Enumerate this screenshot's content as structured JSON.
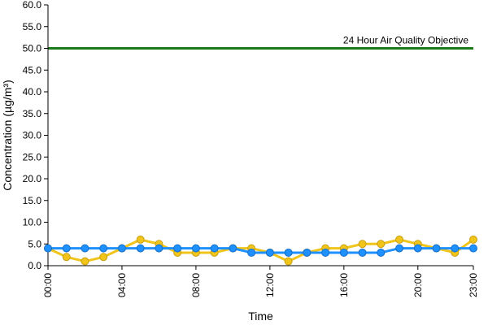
{
  "chart_data": {
    "type": "line",
    "xlabel": "Time",
    "ylabel": "Concentration (µg/m³)",
    "ylim": [
      0,
      60
    ],
    "yticks": [
      "0.0",
      "5.0",
      "10.0",
      "15.0",
      "20.0",
      "25.0",
      "30.0",
      "35.0",
      "40.0",
      "45.0",
      "50.0",
      "55.0",
      "60.0"
    ],
    "xlim": [
      0,
      23
    ],
    "xticks": [
      {
        "x": 0,
        "label": "00:00"
      },
      {
        "x": 4,
        "label": "04:00"
      },
      {
        "x": 8,
        "label": "08:00"
      },
      {
        "x": 12,
        "label": "12:00"
      },
      {
        "x": 16,
        "label": "16:00"
      },
      {
        "x": 20,
        "label": "20:00"
      },
      {
        "x": 23,
        "label": "23:00"
      }
    ],
    "grid": false,
    "x": [
      0,
      1,
      2,
      3,
      4,
      5,
      6,
      7,
      8,
      9,
      10,
      11,
      12,
      13,
      14,
      15,
      16,
      17,
      18,
      19,
      20,
      21,
      22,
      23
    ],
    "series": [
      {
        "color": "#f0c419",
        "values": [
          4,
          2,
          1,
          2,
          4,
          6,
          5,
          3,
          3,
          3,
          4,
          4,
          3,
          1,
          3,
          4,
          4,
          5,
          5,
          6,
          5,
          4,
          3,
          6
        ]
      },
      {
        "color": "#1e90ff",
        "values": [
          4,
          4,
          4,
          4,
          4,
          4,
          4,
          4,
          4,
          4,
          4,
          3,
          3,
          3,
          3,
          3,
          3,
          3,
          3,
          4,
          4,
          4,
          4,
          4
        ]
      }
    ],
    "reference_line": {
      "value": 50,
      "label": "24 Hour Air Quality Objective",
      "color": "#1a7a1a"
    }
  }
}
